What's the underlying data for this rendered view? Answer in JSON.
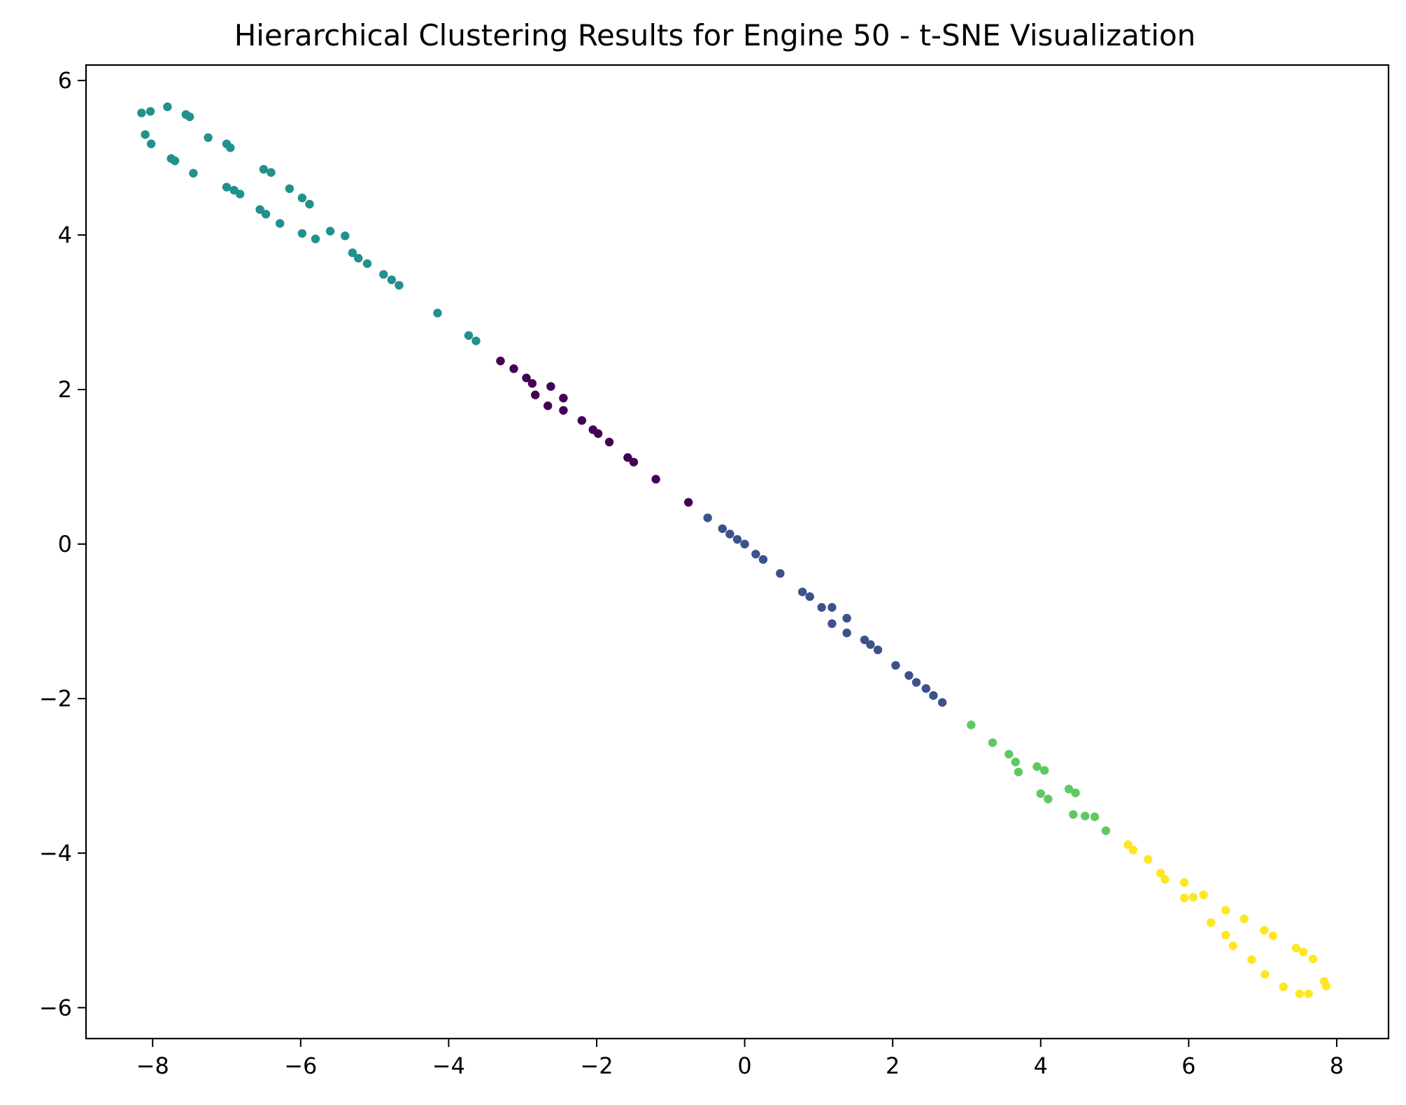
{
  "chart_data": {
    "type": "scatter",
    "title": "Hierarchical Clustering Results for Engine 50 - t-SNE Visualization",
    "xlabel": "",
    "ylabel": "",
    "xlim": [
      -8.9,
      8.7
    ],
    "ylim": [
      -6.4,
      6.2
    ],
    "xticks": [
      -8,
      -6,
      -4,
      -2,
      0,
      2,
      4,
      6,
      8
    ],
    "yticks": [
      -6,
      -4,
      -2,
      0,
      2,
      4,
      6
    ],
    "xtick_labels": [
      "−8",
      "−6",
      "−4",
      "−2",
      "0",
      "2",
      "4",
      "6",
      "8"
    ],
    "ytick_labels": [
      "−6",
      "−4",
      "−2",
      "0",
      "2",
      "4",
      "6"
    ],
    "grid": false,
    "legend": "none",
    "series": [
      {
        "color": "#440154",
        "points": [
          [
            -3.3,
            2.37
          ],
          [
            -3.12,
            2.27
          ],
          [
            -2.95,
            2.15
          ],
          [
            -2.87,
            2.08
          ],
          [
            -2.83,
            1.93
          ],
          [
            -2.62,
            2.04
          ],
          [
            -2.66,
            1.79
          ],
          [
            -2.45,
            1.89
          ],
          [
            -2.45,
            1.73
          ],
          [
            -2.2,
            1.6
          ],
          [
            -2.05,
            1.48
          ],
          [
            -1.98,
            1.43
          ],
          [
            -1.83,
            1.32
          ],
          [
            -1.58,
            1.12
          ],
          [
            -1.5,
            1.06
          ],
          [
            -1.2,
            0.84
          ],
          [
            -0.76,
            0.54
          ]
        ]
      },
      {
        "color": "#3b528b",
        "points": [
          [
            -0.5,
            0.34
          ],
          [
            -0.3,
            0.2
          ],
          [
            -0.2,
            0.13
          ],
          [
            -0.1,
            0.06
          ],
          [
            0.0,
            0.0
          ],
          [
            0.15,
            -0.13
          ],
          [
            0.25,
            -0.2
          ],
          [
            0.48,
            -0.38
          ],
          [
            0.78,
            -0.62
          ],
          [
            0.88,
            -0.68
          ],
          [
            1.04,
            -0.82
          ],
          [
            1.18,
            -0.82
          ],
          [
            1.18,
            -1.03
          ],
          [
            1.38,
            -0.96
          ],
          [
            1.38,
            -1.15
          ],
          [
            1.62,
            -1.24
          ],
          [
            1.7,
            -1.3
          ],
          [
            1.8,
            -1.37
          ],
          [
            2.04,
            -1.57
          ],
          [
            2.22,
            -1.7
          ],
          [
            2.32,
            -1.79
          ],
          [
            2.45,
            -1.87
          ],
          [
            2.55,
            -1.96
          ],
          [
            2.67,
            -2.05
          ]
        ]
      },
      {
        "color": "#21918c",
        "points": [
          [
            -8.15,
            5.58
          ],
          [
            -8.03,
            5.6
          ],
          [
            -7.8,
            5.66
          ],
          [
            -7.55,
            5.56
          ],
          [
            -7.5,
            5.53
          ],
          [
            -8.1,
            5.3
          ],
          [
            -8.02,
            5.18
          ],
          [
            -7.75,
            4.99
          ],
          [
            -7.7,
            4.96
          ],
          [
            -7.45,
            4.8
          ],
          [
            -7.25,
            5.26
          ],
          [
            -7.0,
            5.18
          ],
          [
            -6.95,
            5.13
          ],
          [
            -7.0,
            4.62
          ],
          [
            -6.9,
            4.58
          ],
          [
            -6.82,
            4.53
          ],
          [
            -6.5,
            4.85
          ],
          [
            -6.4,
            4.81
          ],
          [
            -6.15,
            4.6
          ],
          [
            -5.98,
            4.48
          ],
          [
            -5.88,
            4.4
          ],
          [
            -6.55,
            4.33
          ],
          [
            -6.47,
            4.27
          ],
          [
            -6.28,
            4.15
          ],
          [
            -5.98,
            4.02
          ],
          [
            -5.8,
            3.95
          ],
          [
            -5.6,
            4.05
          ],
          [
            -5.4,
            3.99
          ],
          [
            -5.3,
            3.77
          ],
          [
            -5.22,
            3.7
          ],
          [
            -5.1,
            3.63
          ],
          [
            -4.88,
            3.49
          ],
          [
            -4.77,
            3.42
          ],
          [
            -4.67,
            3.35
          ],
          [
            -4.15,
            2.99
          ],
          [
            -3.73,
            2.7
          ],
          [
            -3.63,
            2.63
          ]
        ]
      },
      {
        "color": "#5ec962",
        "points": [
          [
            3.06,
            -2.34
          ],
          [
            3.35,
            -2.57
          ],
          [
            3.57,
            -2.72
          ],
          [
            3.66,
            -2.82
          ],
          [
            3.7,
            -2.95
          ],
          [
            3.95,
            -2.88
          ],
          [
            4.05,
            -2.93
          ],
          [
            4.0,
            -3.23
          ],
          [
            4.1,
            -3.3
          ],
          [
            4.38,
            -3.17
          ],
          [
            4.47,
            -3.22
          ],
          [
            4.44,
            -3.5
          ],
          [
            4.6,
            -3.52
          ],
          [
            4.73,
            -3.53
          ],
          [
            4.88,
            -3.71
          ]
        ]
      },
      {
        "color": "#fde725",
        "points": [
          [
            5.18,
            -3.89
          ],
          [
            5.25,
            -3.96
          ],
          [
            5.45,
            -4.08
          ],
          [
            5.62,
            -4.26
          ],
          [
            5.68,
            -4.34
          ],
          [
            5.94,
            -4.38
          ],
          [
            5.94,
            -4.58
          ],
          [
            6.06,
            -4.57
          ],
          [
            6.2,
            -4.54
          ],
          [
            6.3,
            -4.9
          ],
          [
            6.5,
            -4.74
          ],
          [
            6.5,
            -5.06
          ],
          [
            6.6,
            -5.2
          ],
          [
            6.75,
            -4.85
          ],
          [
            6.85,
            -5.38
          ],
          [
            7.02,
            -5.0
          ],
          [
            7.14,
            -5.07
          ],
          [
            7.03,
            -5.57
          ],
          [
            7.28,
            -5.73
          ],
          [
            7.45,
            -5.23
          ],
          [
            7.5,
            -5.82
          ],
          [
            7.55,
            -5.28
          ],
          [
            7.62,
            -5.82
          ],
          [
            7.68,
            -5.37
          ],
          [
            7.83,
            -5.66
          ],
          [
            7.86,
            -5.72
          ]
        ]
      }
    ]
  }
}
